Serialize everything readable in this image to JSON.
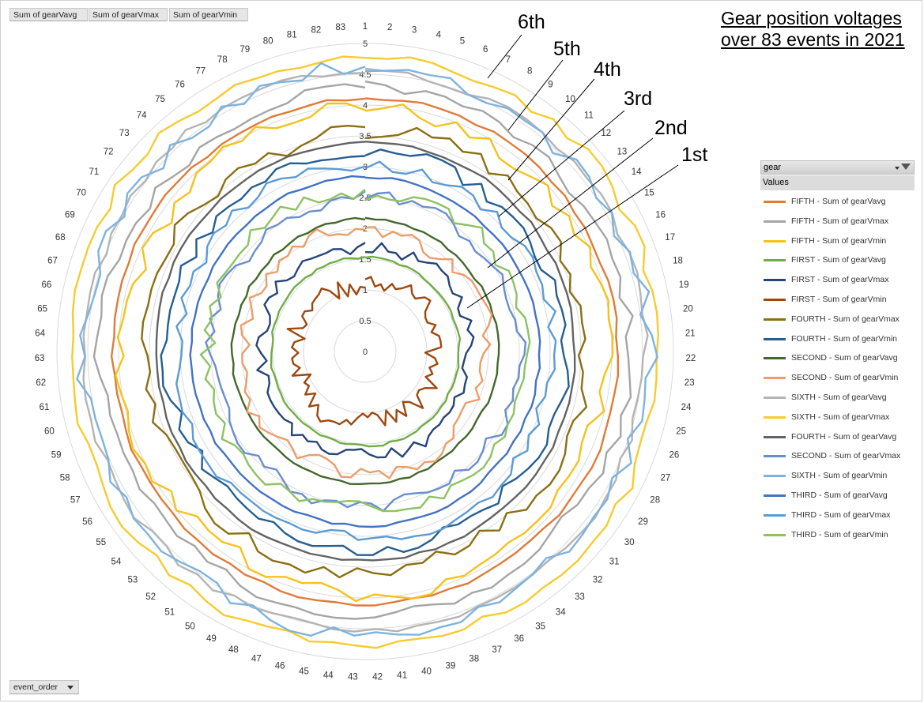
{
  "pivot": {
    "value_buttons": [
      "Sum of gearVavg",
      "Sum of gearVmax",
      "Sum of gearVmin"
    ],
    "axis_field": "event_order",
    "legend_field": "gear",
    "legend_values_label": "Values"
  },
  "title_lines": [
    "Gear position voltages",
    "over 83 events in 2021"
  ],
  "annotations": [
    "6th",
    "5th",
    "4th",
    "3rd",
    "2nd",
    "1st"
  ],
  "chart_data": {
    "type": "radar",
    "title": "Gear position voltages over 83 events in 2021",
    "categories_count": 83,
    "r_min": 0,
    "r_max": 5,
    "r_ticks": [
      0,
      0.5,
      1,
      1.5,
      2,
      2.5,
      3,
      3.5,
      4,
      4.5,
      5
    ],
    "grid": true,
    "legend_position": "right",
    "series": [
      {
        "name": "FIFTH - Sum of gearVavg",
        "color": "#E07B39",
        "level": 4.1,
        "amp": 0.03
      },
      {
        "name": "FIFTH - Sum of gearVmax",
        "color": "#A5A5A5",
        "level": 4.28,
        "amp": 0.09
      },
      {
        "name": "FIFTH - Sum of gearVmin",
        "color": "#F5C21B",
        "level": 3.93,
        "amp": 0.12
      },
      {
        "name": "FIRST - Sum of gearVavg",
        "color": "#70AD47",
        "level": 1.53,
        "amp": 0.02
      },
      {
        "name": "FIRST - Sum of gearVmax",
        "color": "#264478",
        "level": 1.72,
        "amp": 0.1
      },
      {
        "name": "FIRST - Sum of gearVmin",
        "color": "#9E480E",
        "level": 1.15,
        "amp": 0.16
      },
      {
        "name": "FOURTH - Sum of gearVmax",
        "color": "#8B6F12",
        "level": 3.58,
        "amp": 0.12
      },
      {
        "name": "FOURTH - Sum of gearVmin",
        "color": "#255E91",
        "level": 3.22,
        "amp": 0.1
      },
      {
        "name": "SECOND - Sum of gearVavg",
        "color": "#43682B",
        "level": 2.15,
        "amp": 0.02
      },
      {
        "name": "SECOND - Sum of gearVmin",
        "color": "#EB9D6A",
        "level": 2.0,
        "amp": 0.12
      },
      {
        "name": "SIXTH - Sum of gearVavg",
        "color": "#B4B4B4",
        "level": 4.55,
        "amp": 0.06
      },
      {
        "name": "SIXTH - Sum of gearVmax",
        "color": "#F7CB2F",
        "level": 4.78,
        "amp": 0.08
      },
      {
        "name": "FOURTH - Sum of gearVavg",
        "color": "#636363",
        "level": 3.4,
        "amp": 0.02
      },
      {
        "name": "SECOND - Sum of gearVmax",
        "color": "#698ED0",
        "level": 2.5,
        "amp": 0.1
      },
      {
        "name": "SIXTH - Sum of gearVmin",
        "color": "#7EB3DF",
        "level": 4.58,
        "amp": 0.12
      },
      {
        "name": "THIRD - Sum of gearVavg",
        "color": "#4472C4",
        "level": 2.83,
        "amp": 0.02
      },
      {
        "name": "THIRD - Sum of gearVmax",
        "color": "#5B9BD5",
        "level": 3.05,
        "amp": 0.09
      },
      {
        "name": "THIRD - Sum of gearVmin",
        "color": "#8DC263",
        "level": 2.6,
        "amp": 0.12
      }
    ]
  }
}
